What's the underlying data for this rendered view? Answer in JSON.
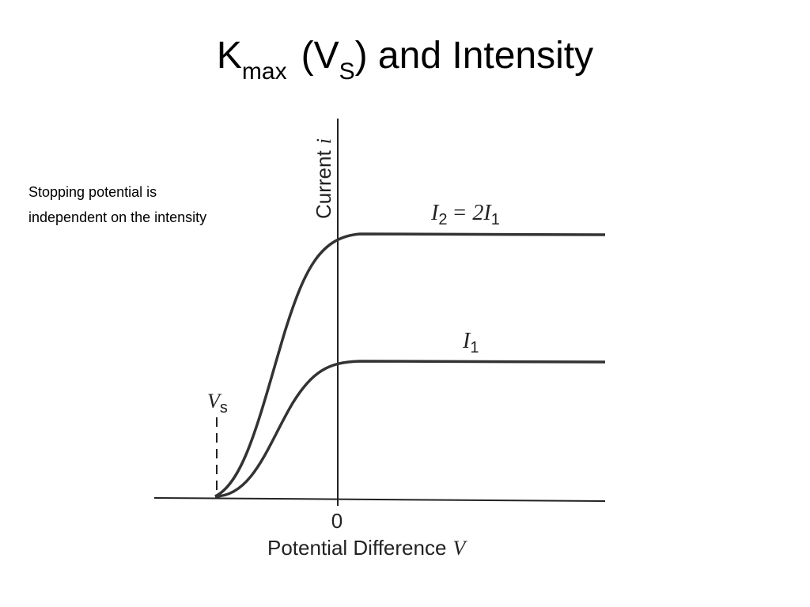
{
  "title": {
    "base": "K",
    "sub": "max",
    "mid": "(V",
    "sub2": "S",
    "end": ") and Intensity"
  },
  "note": {
    "lines": [
      "Stopping potential is",
      "independent on the intensity"
    ]
  },
  "figure": {
    "y_axis_label": {
      "text": "Current",
      "symbol": "i"
    },
    "x_axis_label": {
      "text": "Potential Difference",
      "symbol": "V"
    },
    "origin_label": "0",
    "stopping_label": {
      "symbol": "V",
      "sub": "s"
    },
    "upper_curve_label": {
      "symbol": "I",
      "sub": "2",
      "mid": "= 2",
      "symbol2": "I",
      "sub2": "1"
    },
    "lower_curve_label": {
      "symbol": "I",
      "sub": "1"
    }
  }
}
